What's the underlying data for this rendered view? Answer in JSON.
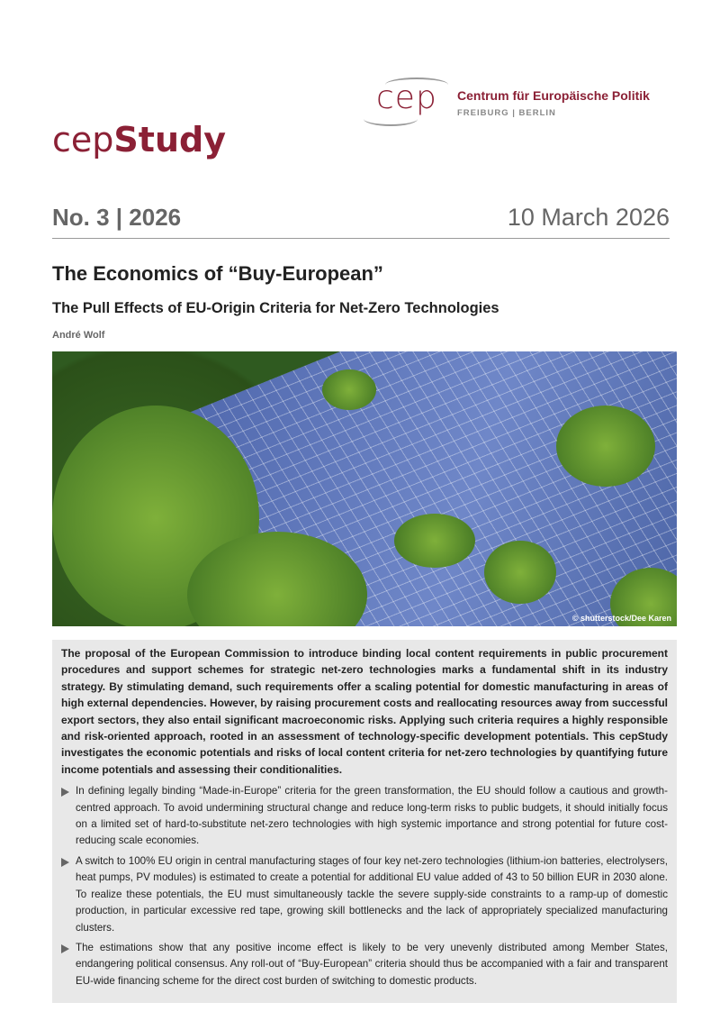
{
  "logo": {
    "mark": "cep",
    "name": "Centrum für Europäische Politik",
    "cities": "FREIBURG | BERLIN"
  },
  "brand": {
    "prefix": "cep",
    "suffix": "Study"
  },
  "issue": "No. 3 | 2026",
  "date": "10 March 2026",
  "title": "The Economics of “Buy-European”",
  "subtitle": "The Pull Effects of EU-Origin Criteria for Net-Zero Technologies",
  "author": "André Wolf",
  "photo_credit": "© shutterstock/Dee Karen",
  "abstract": "The proposal of the European Commission to introduce binding local content requirements in public procurement procedures and support schemes for strategic net-zero technologies marks a fundamental shift in its industry strategy. By stimulating demand, such requirements offer a scaling potential for domestic manufacturing in areas of high external dependencies. However, by raising procurement costs and reallocating resources away from successful export sectors, they also entail significant macroeconomic risks. Applying such criteria requires a highly responsible and risk-oriented approach, rooted in an assessment of technology-specific development potentials. This cepStudy investigates the economic potentials and risks of local content criteria for net-zero technologies by quantifying future income potentials and assessing their conditionalities.",
  "bullets": [
    "In defining legally binding “Made-in-Europe” criteria for the green transformation, the EU should follow a cautious and growth-centred approach. To avoid undermining structural change and reduce long-term risks to public budgets, it should initially focus on a limited set of hard-to-substitute net-zero technologies with high systemic importance and strong potential for future cost-reducing scale economies.",
    "A switch to 100% EU origin in central manufacturing stages of four key net-zero technologies (lithium-ion batteries, electrolysers, heat pumps, PV modules) is estimated to create a potential for additional EU value added of 43 to 50 billion EUR in 2030 alone. To realize these potentials, the EU must simultaneously tackle the severe supply-side constraints to a ramp-up of domestic production, in particular excessive red tape, growing skill bottlenecks and the lack of appropriately specialized manufacturing clusters.",
    "The estimations show that any positive income effect is likely to be very unevenly distributed among Member States, endangering political consensus. Any roll-out of “Buy-European” criteria should thus be accompanied with a fair and transparent EU-wide financing scheme for the direct cost burden of switching to domestic products."
  ]
}
